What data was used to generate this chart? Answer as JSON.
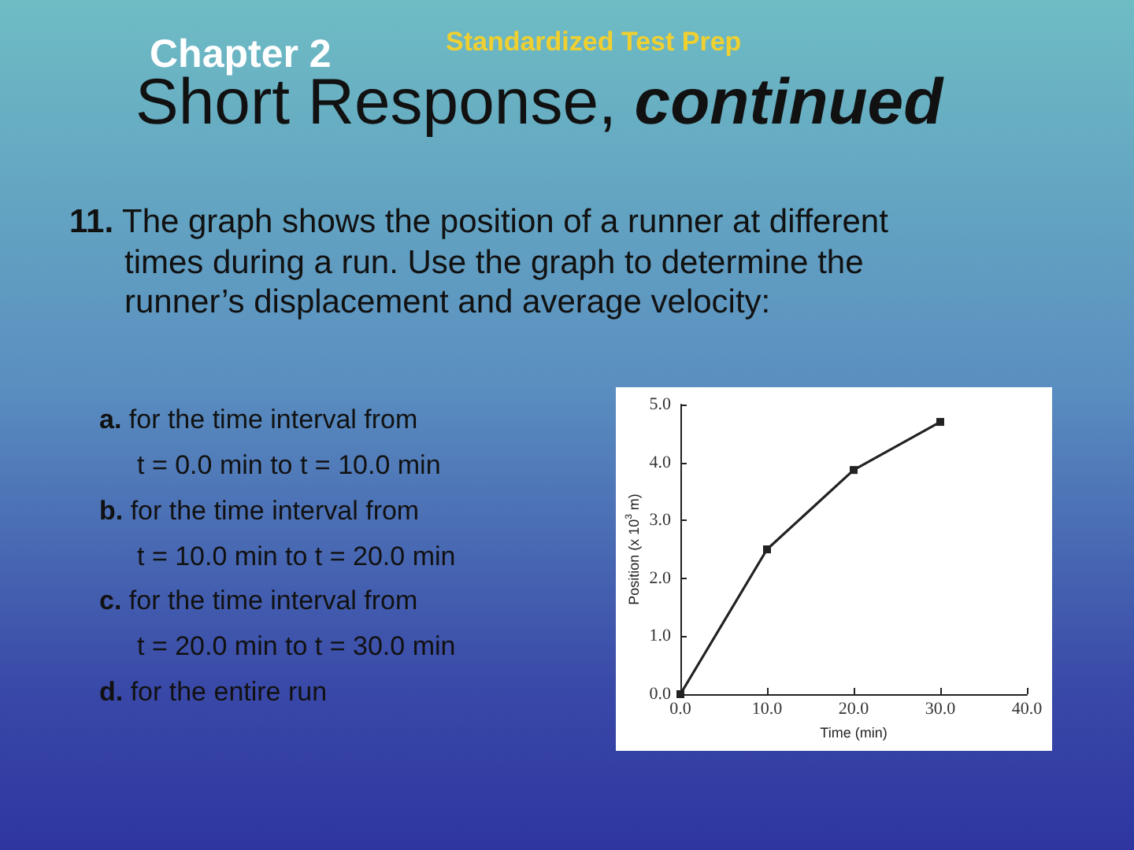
{
  "chart_data": {
    "type": "line",
    "title": "Short Response, continued",
    "subtitle": "Standardized Test Prep",
    "annotations": [
      "Chapter 2",
      "11. The graph shows the position of a runner at different",
      "times during a run. Use the graph to determine the",
      "runner’s displacement and average velocity:",
      "a. for the time interval from",
      "t = 0.0 min to t = 10.0 min",
      "b. for the time interval from",
      "t = 10.0 min to t = 20.0 min",
      "c. for the time interval from",
      "t = 20.0 min to t = 30.0 min",
      "d. for the entire run"
    ],
    "xlabel": "Time (min)",
    "ylabel": "Position (x 10$^{3}$ m)",
    "x": [
      0,
      10,
      20,
      30
    ],
    "series": [
      {
        "color": "#222222",
        "values": [
          0,
          2.5,
          3.87,
          4.7
        ]
      }
    ],
    "xlim": [
      0,
      40
    ],
    "xticks": [
      {
        "value": 0,
        "label": "0.0"
      },
      {
        "value": 10,
        "label": "10.0"
      },
      {
        "value": 20,
        "label": "20.0"
      },
      {
        "value": 30,
        "label": "30.0"
      },
      {
        "value": 40,
        "label": "40.0"
      }
    ],
    "ylim": [
      0,
      5
    ],
    "yticks": [
      {
        "value": 0,
        "label": "0.0"
      },
      {
        "value": 1,
        "label": "1.0"
      },
      {
        "value": 2,
        "label": "2.0"
      },
      {
        "value": 3,
        "label": "3.0"
      },
      {
        "value": 4,
        "label": "4.0"
      },
      {
        "value": 5,
        "label": "5.0"
      }
    ],
    "grid": false,
    "marker": "square",
    "line_style": "solid"
  }
}
